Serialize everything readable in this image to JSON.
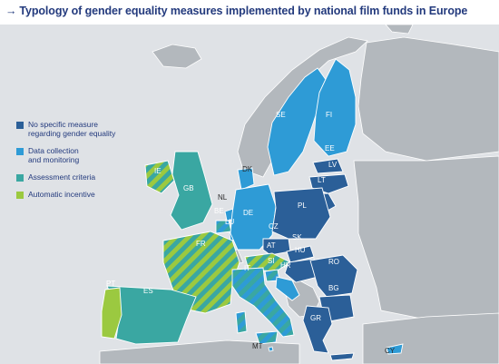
{
  "title": {
    "arrow": "→",
    "text": "Typology of gender equality measures implemented by national film funds in Europe"
  },
  "colors": {
    "no_measure": "#2b5f98",
    "data_collection": "#2e9bd6",
    "assessment": "#3aa7a2",
    "automatic": "#9bc940",
    "non_member": "#b3b8bd",
    "sea": "#dfe2e6",
    "border": "#ffffff"
  },
  "legend": [
    {
      "key": "no_measure",
      "label": "No specific measure\nregarding gender equality"
    },
    {
      "key": "data_collection",
      "label": "Data collection\nand monitoring"
    },
    {
      "key": "assessment",
      "label": "Assessment criteria"
    },
    {
      "key": "automatic",
      "label": "Automatic incentive"
    }
  ],
  "countries": [
    {
      "code": "SE",
      "category": "data_collection"
    },
    {
      "code": "FI",
      "category": "data_collection"
    },
    {
      "code": "EE",
      "category": "no_measure"
    },
    {
      "code": "LV",
      "category": "no_measure"
    },
    {
      "code": "LT",
      "category": "no_measure"
    },
    {
      "code": "DK",
      "category": "data_collection"
    },
    {
      "code": "IE",
      "category": "assessment+automatic"
    },
    {
      "code": "GB",
      "category": "assessment"
    },
    {
      "code": "NL",
      "category": "data_collection"
    },
    {
      "code": "BE",
      "category": "data_collection+assessment"
    },
    {
      "code": "LU",
      "category": "data_collection"
    },
    {
      "code": "DE",
      "category": "data_collection"
    },
    {
      "code": "PL",
      "category": "no_measure"
    },
    {
      "code": "CZ",
      "category": "no_measure"
    },
    {
      "code": "SK",
      "category": "no_measure"
    },
    {
      "code": "AT",
      "category": "assessment+automatic"
    },
    {
      "code": "HU",
      "category": "no_measure"
    },
    {
      "code": "SI",
      "category": "data_collection+assessment"
    },
    {
      "code": "HR",
      "category": "data_collection"
    },
    {
      "code": "RO",
      "category": "no_measure"
    },
    {
      "code": "BG",
      "category": "no_measure"
    },
    {
      "code": "FR",
      "category": "assessment+automatic"
    },
    {
      "code": "IT",
      "category": "data_collection+assessment"
    },
    {
      "code": "ES",
      "category": "assessment"
    },
    {
      "code": "PT",
      "category": "automatic"
    },
    {
      "code": "GR",
      "category": "no_measure"
    },
    {
      "code": "MT",
      "category": "data_collection"
    },
    {
      "code": "CY",
      "category": "data_collection"
    }
  ]
}
